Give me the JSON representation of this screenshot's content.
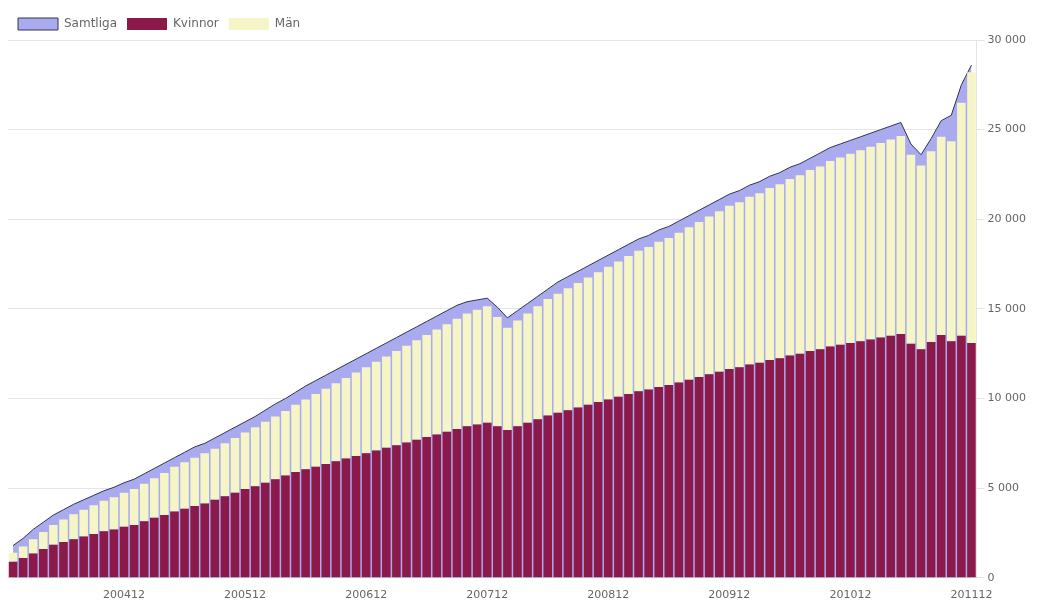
{
  "chart_data": {
    "type": "bar",
    "stacked": true,
    "grid": true,
    "legend": "upper left",
    "categories": [
      null,
      null,
      null,
      null,
      null,
      null,
      null,
      null,
      null,
      null,
      null,
      "200412",
      null,
      null,
      null,
      null,
      null,
      null,
      null,
      null,
      null,
      null,
      null,
      "200512",
      null,
      null,
      null,
      null,
      null,
      null,
      null,
      null,
      null,
      null,
      null,
      "200612",
      null,
      null,
      null,
      null,
      null,
      null,
      null,
      null,
      null,
      null,
      null,
      "200712",
      null,
      null,
      null,
      null,
      null,
      null,
      null,
      null,
      null,
      null,
      null,
      "200812",
      null,
      null,
      null,
      null,
      null,
      null,
      null,
      null,
      null,
      null,
      null,
      "200912",
      null,
      null,
      null,
      null,
      null,
      null,
      null,
      null,
      null,
      null,
      null,
      "201012",
      null,
      null,
      null,
      null,
      null,
      null,
      null,
      null,
      null,
      null,
      null,
      "201112"
    ],
    "ylim": [
      0,
      30000
    ],
    "yticks": [
      0,
      {
        "value": 5000,
        "label": "5 000"
      },
      {
        "value": 10000,
        "label": "10 000"
      },
      {
        "value": 15000,
        "label": "15 000"
      },
      {
        "value": 20000,
        "label": "20 000"
      },
      {
        "value": 25000,
        "label": "25 000"
      },
      {
        "value": 30000,
        "label": "30 000"
      }
    ],
    "series": [
      {
        "name": "Samtliga",
        "type": "area",
        "color": "#aaaaee",
        "values": [
          1800,
          2200,
          2700,
          3100,
          3500,
          3800,
          4100,
          4350,
          4600,
          4850,
          5050,
          5300,
          5500,
          5800,
          6100,
          6400,
          6700,
          7000,
          7300,
          7500,
          7800,
          8100,
          8400,
          8700,
          9000,
          9350,
          9700,
          10000,
          10350,
          10700,
          11000,
          11300,
          11600,
          11900,
          12200,
          12500,
          12800,
          13100,
          13400,
          13700,
          14000,
          14300,
          14600,
          14900,
          15200,
          15400,
          15500,
          15600,
          15100,
          14500,
          14900,
          15300,
          15700,
          16100,
          16500,
          16800,
          17100,
          17400,
          17700,
          18000,
          18300,
          18600,
          18900,
          19100,
          19400,
          19600,
          19900,
          20200,
          20500,
          20800,
          21100,
          21400,
          21600,
          21900,
          22100,
          22400,
          22600,
          22900,
          23100,
          23400,
          23700,
          24000,
          24200,
          24400,
          24600,
          24800,
          25000,
          25200,
          25400,
          24200,
          23600,
          24500,
          25500,
          25800,
          27500,
          28600
        ]
      },
      {
        "name": "Kvinnor",
        "type": "bar",
        "color": "#8b1a4a",
        "values": [
          900,
          1100,
          1350,
          1600,
          1850,
          2000,
          2150,
          2300,
          2450,
          2600,
          2700,
          2850,
          2950,
          3150,
          3350,
          3500,
          3700,
          3850,
          4000,
          4150,
          4350,
          4550,
          4750,
          4950,
          5100,
          5300,
          5500,
          5700,
          5900,
          6050,
          6200,
          6350,
          6500,
          6650,
          6800,
          6950,
          7100,
          7250,
          7400,
          7550,
          7700,
          7850,
          8000,
          8150,
          8300,
          8450,
          8550,
          8650,
          8450,
          8250,
          8450,
          8650,
          8850,
          9050,
          9200,
          9350,
          9500,
          9650,
          9800,
          9950,
          10100,
          10250,
          10400,
          10500,
          10650,
          10750,
          10900,
          11050,
          11200,
          11350,
          11500,
          11650,
          11750,
          11900,
          12000,
          12150,
          12250,
          12400,
          12500,
          12650,
          12750,
          12900,
          13000,
          13100,
          13200,
          13300,
          13400,
          13500,
          13600,
          13050,
          12750,
          13150,
          13550,
          13200,
          13500,
          13100
        ]
      },
      {
        "name": "Män",
        "type": "bar",
        "color": "#f5f5c8",
        "values": [
          500,
          650,
          800,
          950,
          1100,
          1250,
          1400,
          1500,
          1600,
          1700,
          1800,
          1900,
          2000,
          2100,
          2200,
          2350,
          2500,
          2600,
          2700,
          2800,
          2850,
          2950,
          3050,
          3150,
          3300,
          3400,
          3500,
          3600,
          3750,
          3900,
          4050,
          4200,
          4350,
          4500,
          4650,
          4800,
          4950,
          5100,
          5250,
          5400,
          5550,
          5700,
          5850,
          6000,
          6150,
          6300,
          6400,
          6500,
          6100,
          5700,
          5900,
          6100,
          6300,
          6500,
          6650,
          6800,
          6950,
          7100,
          7250,
          7400,
          7550,
          7700,
          7850,
          7950,
          8100,
          8200,
          8350,
          8500,
          8650,
          8800,
          8950,
          9100,
          9200,
          9350,
          9450,
          9600,
          9700,
          9850,
          9950,
          10100,
          10200,
          10350,
          10450,
          10550,
          10650,
          10750,
          10850,
          10950,
          11050,
          10550,
          10250,
          10650,
          11050,
          11150,
          13000,
          15100
        ]
      }
    ]
  }
}
